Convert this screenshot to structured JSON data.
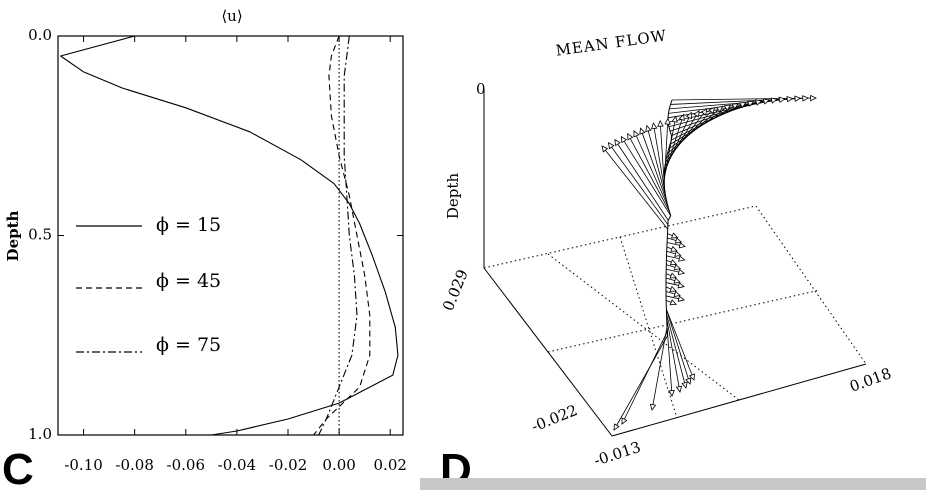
{
  "chart_data": [
    {
      "type": "line",
      "panel_label": "C",
      "title": "⟨u⟩",
      "xlabel": "",
      "ylabel": "Depth",
      "xlim": [
        -0.11,
        0.025
      ],
      "ylim": [
        1.0,
        0.0
      ],
      "xticks": [
        "-0.10",
        "-0.08",
        "-0.06",
        "-0.04",
        "-0.02",
        "0.00",
        "0.02"
      ],
      "yticks": [
        "0.0",
        "0.5",
        "1.0"
      ],
      "legend_position": "left",
      "series": [
        {
          "name": "ϕ = 15",
          "style": "solid",
          "x": [
            -0.08,
            -0.109,
            -0.1,
            -0.085,
            -0.06,
            -0.035,
            -0.015,
            -0.002,
            0.004,
            0.008,
            0.013,
            0.018,
            0.022,
            0.023,
            0.021,
            0.0,
            -0.02,
            -0.04,
            -0.05
          ],
          "y": [
            0.0,
            0.05,
            0.09,
            0.13,
            0.18,
            0.24,
            0.31,
            0.37,
            0.42,
            0.47,
            0.55,
            0.64,
            0.73,
            0.8,
            0.85,
            0.92,
            0.96,
            0.99,
            1.0
          ]
        },
        {
          "name": "ϕ = 45",
          "style": "dashed",
          "x": [
            0.0,
            -0.003,
            -0.004,
            -0.003,
            0.0,
            0.004,
            0.007,
            0.01,
            0.012,
            0.012,
            0.008,
            -0.005,
            -0.01
          ],
          "y": [
            0.0,
            0.05,
            0.1,
            0.2,
            0.3,
            0.4,
            0.5,
            0.6,
            0.7,
            0.8,
            0.88,
            0.96,
            1.0
          ]
        },
        {
          "name": "ϕ = 75",
          "style": "dashdot",
          "x": [
            0.004,
            0.003,
            0.002,
            0.002,
            0.002,
            0.003,
            0.004,
            0.006,
            0.007,
            0.005,
            0.0,
            -0.005,
            -0.008
          ],
          "y": [
            0.0,
            0.05,
            0.1,
            0.2,
            0.3,
            0.4,
            0.5,
            0.6,
            0.7,
            0.8,
            0.88,
            0.96,
            1.0
          ]
        },
        {
          "name": "",
          "style": "dotted",
          "x": [
            0.0,
            0.0
          ],
          "y": [
            0.0,
            1.0
          ]
        }
      ]
    },
    {
      "type": "other",
      "panel_label": "D",
      "title": "MEAN FLOW",
      "zlabel": "Depth",
      "axis_labels": {
        "top_tick": "0",
        "left_axis": "0.029",
        "front_left": "-0.022",
        "front_mid": "-0.013",
        "right_axis": "0.018"
      }
    }
  ]
}
